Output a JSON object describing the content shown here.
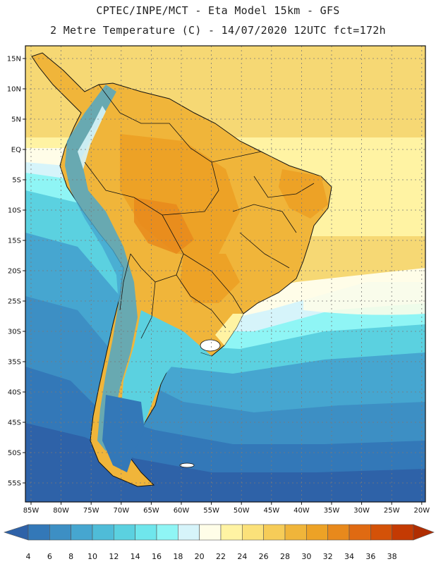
{
  "header": {
    "line1": "CPTEC/INPE/MCT -  Eta Model 15km - GFS",
    "line2": "2 Metre Temperature (C) - 14/07/2020 12UTC fct=172h"
  },
  "axes": {
    "lat_labels": [
      "15N",
      "10N",
      "5N",
      "EQ",
      "5S",
      "10S",
      "15S",
      "20S",
      "25S",
      "30S",
      "35S",
      "40S",
      "45S",
      "50S",
      "55S"
    ],
    "lon_labels": [
      "85W",
      "80W",
      "75W",
      "70W",
      "65W",
      "60W",
      "55W",
      "50W",
      "45W",
      "40W",
      "35W",
      "30W",
      "25W",
      "20W"
    ]
  },
  "colorbar": {
    "labels": [
      "4",
      "6",
      "8",
      "10",
      "12",
      "14",
      "16",
      "18",
      "20",
      "22",
      "24",
      "26",
      "28",
      "30",
      "32",
      "34",
      "36",
      "38"
    ],
    "colors": [
      "#2e62a8",
      "#3378b8",
      "#3d8fc4",
      "#46a6d0",
      "#4fbcd8",
      "#5bd1e0",
      "#6fe6ec",
      "#8ff5f5",
      "#d6f4fa",
      "#fffde8",
      "#fff3a3",
      "#fbe17a",
      "#f6cc58",
      "#f0b53a",
      "#eda226",
      "#e8891c",
      "#e06a12",
      "#d45208",
      "#c43a03",
      "#b02d01"
    ]
  }
}
